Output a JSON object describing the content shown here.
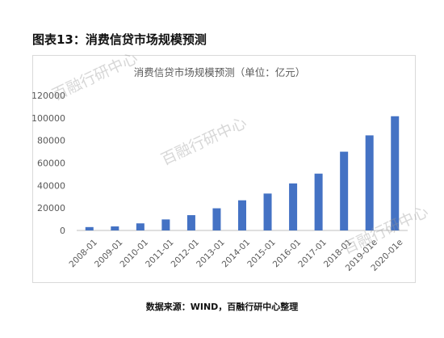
{
  "figure_title": "图表13：消费信贷市场规模预测",
  "source_note": "数据来源：WIND，百融行研中心整理",
  "watermark_text": "百融行研中心",
  "bar_color": "#4472c4",
  "chart_data": {
    "type": "bar",
    "title": "消费信贷市场规模预测（单位：亿元）",
    "xlabel": "",
    "ylabel": "",
    "categories": [
      "2008-01",
      "2009-01",
      "2010-01",
      "2011-01",
      "2012-01",
      "2013-01",
      "2014-01",
      "2015-01",
      "2016-01",
      "2017-01",
      "2018-01",
      "2019-01e",
      "2020-01e"
    ],
    "values": [
      3000,
      3600,
      6300,
      9800,
      13600,
      19700,
      26800,
      32800,
      41800,
      50500,
      70000,
      84500,
      101500
    ],
    "yticks": [
      0,
      20000,
      40000,
      60000,
      80000,
      100000,
      120000
    ],
    "ylim": [
      0,
      120000
    ],
    "grid": false,
    "legend": "none"
  }
}
